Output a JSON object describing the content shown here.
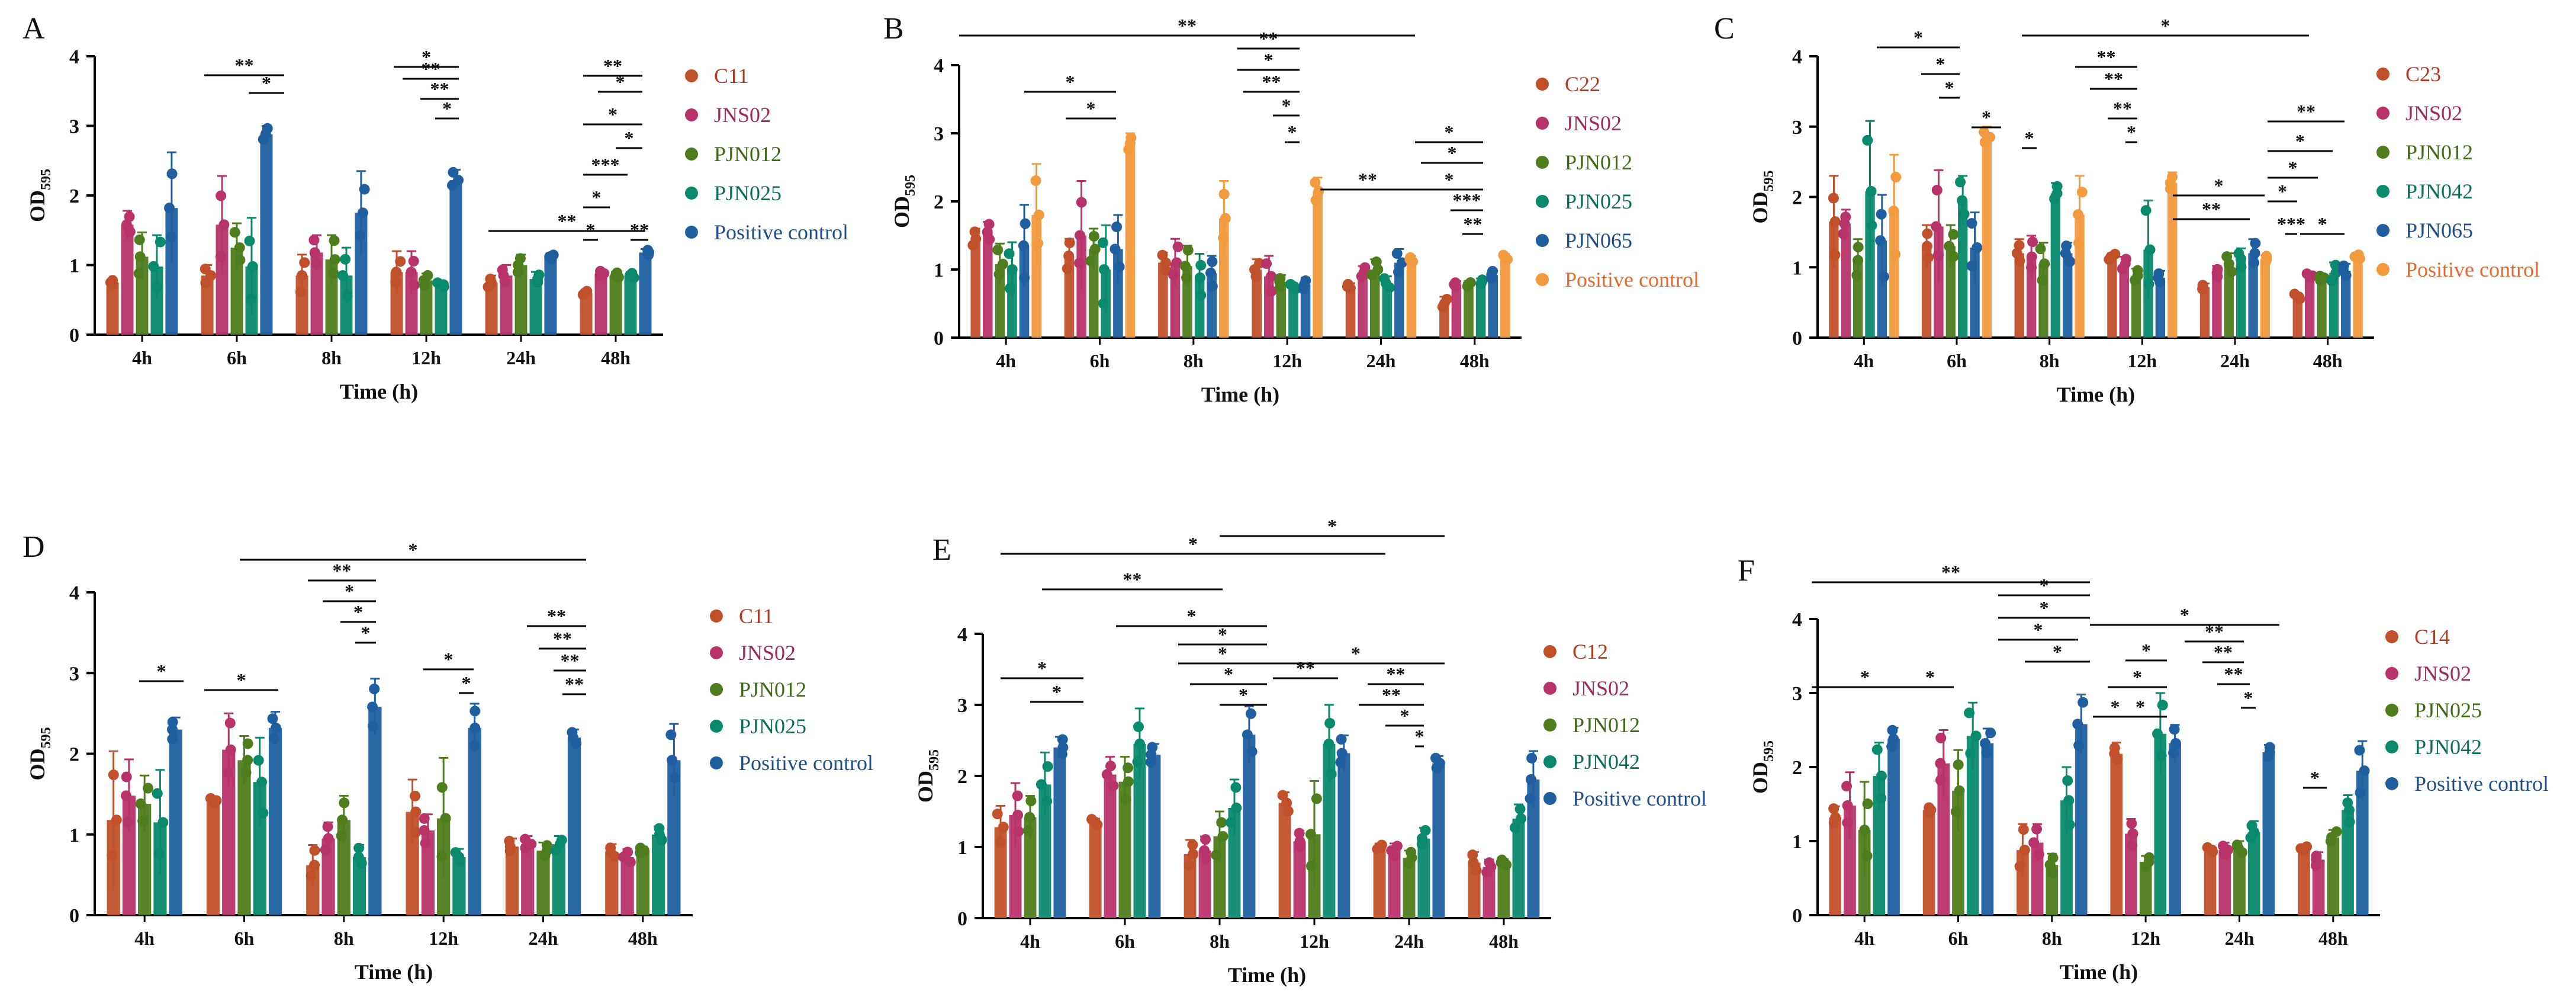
{
  "figure": {
    "y_tick_labels": [
      "0",
      "1",
      "2",
      "3",
      "4"
    ],
    "colors": {
      "red": "#c0502a",
      "magenta": "#b8336a",
      "green": "#4e7d1e",
      "teal": "#0a8a6c",
      "blue": "#1f5fa0",
      "orange": "#f29a3e",
      "legend_text_red": "#b03a22",
      "legend_text_magenta": "#9e2a5a",
      "legend_text_green": "#3e6a14",
      "legend_text_teal": "#0a6e58",
      "legend_text_blue": "#1f4f8a",
      "legend_text_orange": "#e26a30"
    }
  },
  "chart_data": [
    {
      "panel_label": "A",
      "type": "bar",
      "xlabel": "Time (h)",
      "ylabel_main": "OD",
      "ylabel_sub": "595",
      "ylim": [
        0,
        4
      ],
      "categories": [
        "4h",
        "6h",
        "8h",
        "12h",
        "24h",
        "48h"
      ],
      "series": [
        {
          "name": "C11",
          "color_key": "red",
          "values": [
            0.75,
            0.85,
            0.85,
            0.9,
            0.75,
            0.6
          ],
          "errors": [
            0.05,
            0.15,
            0.3,
            0.3,
            0.1,
            0.05
          ]
        },
        {
          "name": "JNS02",
          "color_key": "magenta",
          "values": [
            1.58,
            1.58,
            1.18,
            0.9,
            0.85,
            0.88
          ],
          "errors": [
            0.2,
            0.7,
            0.25,
            0.3,
            0.15,
            0.05
          ]
        },
        {
          "name": "PJN012",
          "color_key": "green",
          "values": [
            1.12,
            1.25,
            1.08,
            0.78,
            1.0,
            0.85
          ],
          "errors": [
            0.35,
            0.35,
            0.35,
            0.1,
            0.15,
            0.05
          ]
        },
        {
          "name": "PJN025",
          "color_key": "teal",
          "values": [
            0.98,
            0.98,
            0.85,
            0.72,
            0.8,
            0.85
          ],
          "errors": [
            0.45,
            0.7,
            0.4,
            0.05,
            0.1,
            0.05
          ]
        },
        {
          "name": "Positive control",
          "color_key": "blue",
          "values": [
            1.82,
            2.88,
            1.75,
            2.22,
            1.12,
            1.18
          ],
          "errors": [
            0.8,
            0.12,
            0.6,
            0.15,
            0.05,
            0.05
          ]
        }
      ],
      "annotations": [
        "**",
        "*",
        "*",
        "**",
        "**",
        "*",
        "**",
        "**",
        "*",
        "*",
        "*",
        "***",
        "*",
        "*",
        "**"
      ]
    },
    {
      "panel_label": "B",
      "type": "bar",
      "xlabel": "Time (h)",
      "ylabel_main": "OD",
      "ylabel_sub": "595",
      "ylim": [
        0,
        4
      ],
      "categories": [
        "4h",
        "6h",
        "8h",
        "12h",
        "24h",
        "48h"
      ],
      "series": [
        {
          "name": "C22",
          "color_key": "red",
          "values": [
            1.45,
            1.2,
            1.1,
            1.0,
            0.75,
            0.5
          ],
          "errors": [
            0.15,
            0.25,
            0.15,
            0.15,
            0.05,
            0.1
          ]
        },
        {
          "name": "JNS02",
          "color_key": "magenta",
          "values": [
            1.55,
            1.5,
            1.1,
            0.9,
            0.95,
            0.78
          ],
          "errors": [
            0.15,
            0.8,
            0.35,
            0.3,
            0.1,
            0.05
          ]
        },
        {
          "name": "PJN012",
          "color_key": "green",
          "values": [
            1.08,
            1.3,
            1.05,
            0.82,
            1.0,
            0.78
          ],
          "errors": [
            0.3,
            0.3,
            0.3,
            0.1,
            0.15,
            0.05
          ]
        },
        {
          "name": "PJN025",
          "color_key": "teal",
          "values": [
            1.0,
            1.0,
            0.88,
            0.75,
            0.8,
            0.82
          ],
          "errors": [
            0.4,
            0.65,
            0.35,
            0.05,
            0.1,
            0.05
          ]
        },
        {
          "name": "PJN065",
          "color_key": "blue",
          "values": [
            1.35,
            1.3,
            0.95,
            0.78,
            1.1,
            0.92
          ],
          "errors": [
            0.6,
            0.5,
            0.25,
            0.1,
            0.2,
            0.08
          ]
        },
        {
          "name": "Positive control",
          "color_key": "orange",
          "values": [
            1.8,
            2.85,
            1.75,
            2.15,
            1.15,
            1.18
          ],
          "errors": [
            0.75,
            0.15,
            0.55,
            0.2,
            0.05,
            0.05
          ]
        }
      ],
      "annotations": [
        "**",
        "*",
        "*",
        "**",
        "*",
        "**",
        "*",
        "*",
        "**",
        "*",
        "*",
        "*",
        "***",
        "**"
      ]
    },
    {
      "panel_label": "C",
      "type": "bar",
      "xlabel": "Time (h)",
      "ylabel_main": "OD",
      "ylabel_sub": "595",
      "ylim": [
        0,
        4
      ],
      "categories": [
        "4h",
        "6h",
        "8h",
        "12h",
        "24h",
        "48h"
      ],
      "series": [
        {
          "name": "C23",
          "color_key": "red",
          "values": [
            1.65,
            1.3,
            1.2,
            1.15,
            0.72,
            0.58
          ],
          "errors": [
            0.65,
            0.3,
            0.2,
            0.05,
            0.05,
            0.05
          ]
        },
        {
          "name": "JNS02",
          "color_key": "magenta",
          "values": [
            1.62,
            1.58,
            1.15,
            1.05,
            0.92,
            0.88
          ],
          "errors": [
            0.2,
            0.8,
            0.3,
            0.1,
            0.1,
            0.05
          ]
        },
        {
          "name": "PJN012",
          "color_key": "green",
          "values": [
            1.1,
            1.3,
            1.05,
            0.88,
            1.05,
            0.85
          ],
          "errors": [
            0.3,
            0.3,
            0.3,
            0.1,
            0.15,
            0.05
          ]
        },
        {
          "name": "PJN042",
          "color_key": "teal",
          "values": [
            2.08,
            1.95,
            2.05,
            1.25,
            1.12,
            0.92
          ],
          "errors": [
            1.0,
            0.35,
            0.15,
            0.7,
            0.15,
            0.15
          ]
        },
        {
          "name": "PJN065",
          "color_key": "blue",
          "values": [
            1.38,
            1.28,
            1.2,
            0.85,
            1.2,
            0.95
          ],
          "errors": [
            0.65,
            0.5,
            0.15,
            0.1,
            0.2,
            0.1
          ]
        },
        {
          "name": "Positive control",
          "color_key": "orange",
          "values": [
            1.8,
            2.85,
            1.75,
            2.2,
            1.12,
            1.15
          ],
          "errors": [
            0.8,
            0.15,
            0.55,
            0.15,
            0.05,
            0.05
          ]
        }
      ],
      "annotations": [
        "*",
        "*",
        "*",
        "*",
        "*",
        "*",
        "**",
        "**",
        "**",
        "*",
        "*",
        "**",
        "**",
        "*",
        "*",
        "*",
        "*",
        "***"
      ]
    },
    {
      "panel_label": "D",
      "type": "bar",
      "xlabel": "Time (h)",
      "ylabel_main": "OD",
      "ylabel_sub": "595",
      "ylim": [
        0,
        4
      ],
      "categories": [
        "4h",
        "6h",
        "8h",
        "12h",
        "24h",
        "48h"
      ],
      "series": [
        {
          "name": "C11",
          "color_key": "red",
          "values": [
            1.18,
            1.42,
            0.62,
            1.28,
            0.85,
            0.78
          ],
          "errors": [
            0.85,
            0.05,
            0.25,
            0.4,
            0.1,
            0.1
          ]
        },
        {
          "name": "JNS02",
          "color_key": "magenta",
          "values": [
            1.48,
            2.05,
            0.95,
            1.05,
            0.88,
            0.72
          ],
          "errors": [
            0.45,
            0.45,
            0.2,
            0.2,
            0.1,
            0.1
          ]
        },
        {
          "name": "PJN012",
          "color_key": "green",
          "values": [
            1.38,
            1.92,
            1.18,
            1.2,
            0.8,
            0.8
          ],
          "errors": [
            0.35,
            0.3,
            0.3,
            0.75,
            0.1,
            0.05
          ]
        },
        {
          "name": "PJN025",
          "color_key": "teal",
          "values": [
            1.15,
            1.65,
            0.72,
            0.72,
            0.88,
            1.0
          ],
          "errors": [
            0.65,
            0.55,
            0.15,
            0.1,
            0.1,
            0.1
          ]
        },
        {
          "name": "Positive control",
          "color_key": "blue",
          "values": [
            2.3,
            2.32,
            2.58,
            2.32,
            2.2,
            1.92
          ],
          "errors": [
            0.15,
            0.2,
            0.35,
            0.3,
            0.1,
            0.45
          ]
        }
      ],
      "annotations": [
        "*",
        "*",
        "*",
        "**",
        "*",
        "*",
        "*",
        "*",
        "*",
        "**",
        "**",
        "**",
        "**"
      ]
    },
    {
      "panel_label": "E",
      "type": "bar",
      "xlabel": "Time (h)",
      "ylabel_main": "OD",
      "ylabel_sub": "595",
      "ylim": [
        0,
        4
      ],
      "categories": [
        "4h",
        "6h",
        "8h",
        "12h",
        "24h",
        "48h"
      ],
      "series": [
        {
          "name": "C12",
          "color_key": "red",
          "values": [
            1.28,
            1.35,
            0.9,
            1.62,
            1.0,
            0.78
          ],
          "errors": [
            0.3,
            0.05,
            0.2,
            0.15,
            0.05,
            0.15
          ]
        },
        {
          "name": "JNS02",
          "color_key": "magenta",
          "values": [
            1.45,
            2.02,
            0.95,
            1.08,
            0.95,
            0.72
          ],
          "errors": [
            0.45,
            0.25,
            0.2,
            0.15,
            0.1,
            0.1
          ]
        },
        {
          "name": "PJN012",
          "color_key": "green",
          "values": [
            1.42,
            1.92,
            1.15,
            1.18,
            0.85,
            0.78
          ],
          "errors": [
            0.3,
            0.35,
            0.35,
            0.75,
            0.1,
            0.05
          ]
        },
        {
          "name": "PJN042",
          "color_key": "teal",
          "values": [
            1.88,
            2.45,
            1.55,
            2.45,
            1.12,
            1.4
          ],
          "errors": [
            0.45,
            0.5,
            0.4,
            0.55,
            0.15,
            0.2
          ]
        },
        {
          "name": "Positive control",
          "color_key": "blue",
          "values": [
            2.4,
            2.3,
            2.58,
            2.32,
            2.18,
            1.95
          ],
          "errors": [
            0.15,
            0.15,
            0.4,
            0.25,
            0.1,
            0.4
          ]
        }
      ],
      "annotations": [
        "*",
        "*",
        "**",
        "*",
        "*",
        "*",
        "*",
        "*",
        "*",
        "*",
        "*",
        "**",
        "**",
        "**",
        "*",
        "*"
      ]
    },
    {
      "panel_label": "F",
      "type": "bar",
      "xlabel": "Time (h)",
      "ylabel_main": "OD",
      "ylabel_sub": "595",
      "ylim": [
        0,
        4
      ],
      "categories": [
        "4h",
        "6h",
        "8h",
        "12h",
        "24h",
        "48h"
      ],
      "series": [
        {
          "name": "C14",
          "color_key": "red",
          "values": [
            1.32,
            1.42,
            0.88,
            2.18,
            0.88,
            0.9
          ],
          "errors": [
            0.15,
            0.05,
            0.35,
            0.15,
            0.05,
            0.05
          ]
        },
        {
          "name": "JNS02",
          "color_key": "magenta",
          "values": [
            1.48,
            2.05,
            0.98,
            1.1,
            0.88,
            0.75
          ],
          "errors": [
            0.45,
            0.45,
            0.25,
            0.2,
            0.1,
            0.1
          ]
        },
        {
          "name": "PJN025",
          "color_key": "green",
          "values": [
            1.15,
            1.68,
            0.68,
            0.72,
            0.9,
            1.05
          ],
          "errors": [
            0.65,
            0.55,
            0.15,
            0.08,
            0.1,
            0.1
          ]
        },
        {
          "name": "PJN042",
          "color_key": "teal",
          "values": [
            1.88,
            2.42,
            1.55,
            2.45,
            1.12,
            1.42
          ],
          "errors": [
            0.45,
            0.45,
            0.45,
            0.55,
            0.15,
            0.2
          ]
        },
        {
          "name": "Positive control",
          "color_key": "blue",
          "values": [
            2.38,
            2.32,
            2.58,
            2.32,
            2.2,
            1.95
          ],
          "errors": [
            0.15,
            0.2,
            0.4,
            0.25,
            0.1,
            0.4
          ]
        }
      ],
      "annotations": [
        "**",
        "*",
        "*",
        "*",
        "*",
        "*",
        "*",
        "*",
        "*",
        "*",
        "*",
        "*",
        "**",
        "**",
        "**",
        "*",
        "*"
      ]
    }
  ]
}
